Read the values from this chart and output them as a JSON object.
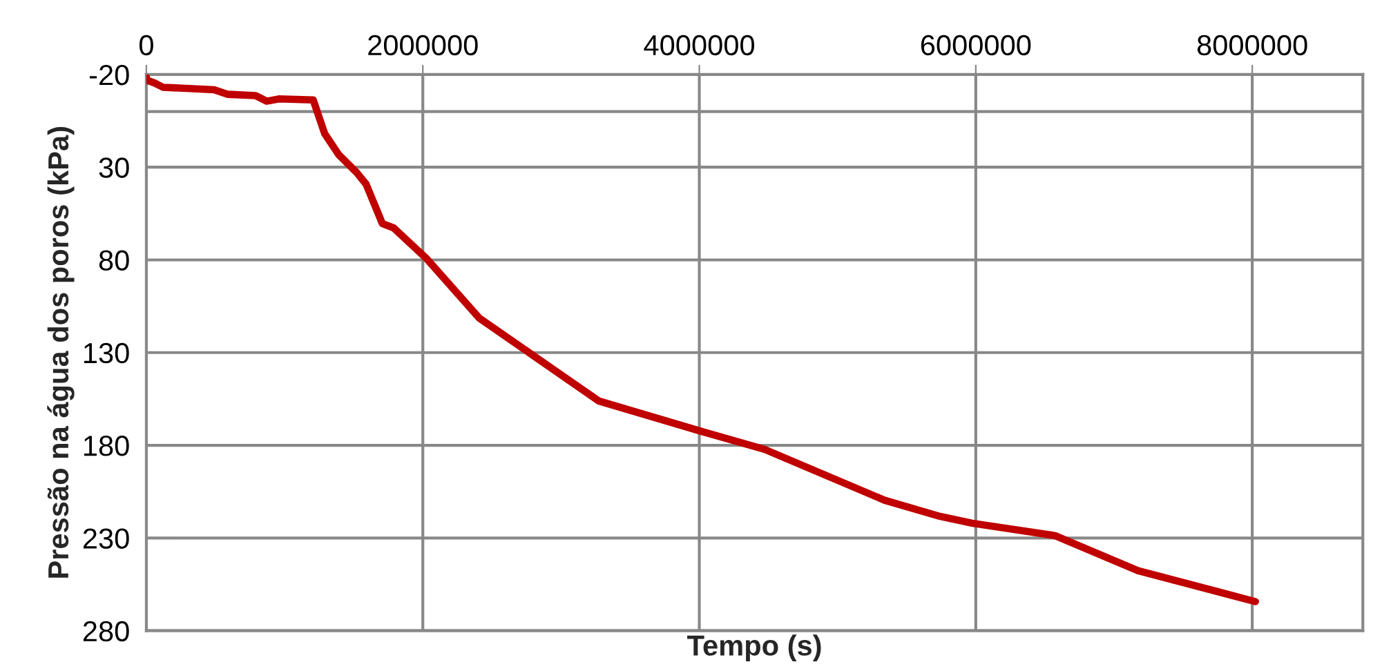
{
  "chart_data": {
    "type": "line",
    "xlabel": "Tempo (s)",
    "ylabel": "Pressão na água dos poros (kPa)",
    "x": [
      0,
      7000,
      57000,
      120000,
      490000,
      590000,
      790000,
      870000,
      957000,
      1207000,
      1290000,
      1390000,
      1523000,
      1590000,
      1707000,
      1790000,
      2023000,
      2407000,
      3273000,
      4007000,
      4473000,
      5340000,
      5740000,
      5973000,
      6573000,
      7173000,
      8023000
    ],
    "series": [
      {
        "color": "#c00000",
        "values": [
          -18.5,
          -16.8,
          -15.5,
          -13.1,
          -11.8,
          -9.3,
          -8.6,
          -5.6,
          -6.8,
          -6.3,
          11.9,
          23.1,
          33.0,
          39.2,
          60.4,
          62.8,
          79.0,
          111.3,
          156.1,
          172.3,
          182.2,
          209.6,
          218.3,
          222.0,
          228.7,
          247.6,
          264.3
        ]
      }
    ],
    "xlim": [
      0,
      8800000
    ],
    "xticks": [
      0,
      2000000,
      4000000,
      6000000,
      8000000
    ],
    "ylim": [
      280,
      -20
    ],
    "yticks": [
      -20,
      30,
      80,
      130,
      180,
      230,
      280
    ],
    "ref_lines": [
      {
        "axis": "y",
        "value": 0,
        "color": "#888888"
      }
    ],
    "grid": true,
    "legend": false,
    "marker": "none",
    "line_style": "solid"
  }
}
